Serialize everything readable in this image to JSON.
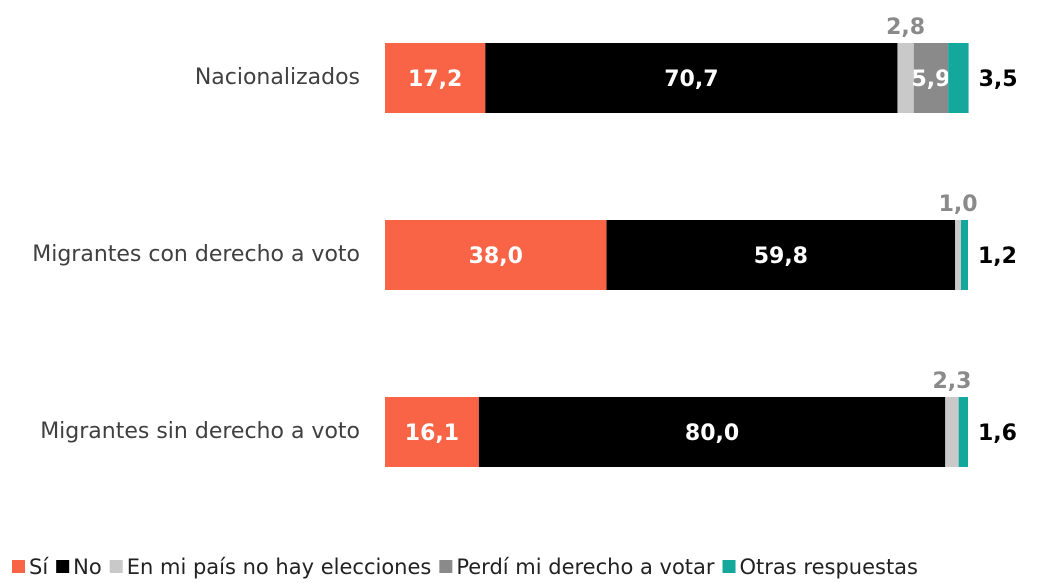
{
  "chart_data": {
    "type": "stacked-bar-horizontal",
    "categories": [
      "Nacionalizados",
      "Migrantes con derecho a voto",
      "Migrantes sin derecho a voto"
    ],
    "xlim": [
      0,
      100
    ],
    "legend": "bottom",
    "series": [
      {
        "name": "Sí",
        "color": "#fa6446",
        "values": [
          17.2,
          38.0,
          16.1
        ],
        "value_labels": [
          "17,2",
          "38,0",
          "16,1"
        ]
      },
      {
        "name": "No",
        "color": "#000000",
        "values": [
          70.7,
          59.8,
          80.0
        ],
        "value_labels": [
          "70,7",
          "59,8",
          "80,0"
        ]
      },
      {
        "name": "En mi país no hay elecciones",
        "color": "#c9c9c9",
        "values": [
          2.8,
          1.0,
          2.3
        ],
        "value_labels": [
          "2,8",
          "1,0",
          "2,3"
        ]
      },
      {
        "name": "Perdí mi derecho a votar",
        "color": "#8a8a8a",
        "values": [
          5.9,
          null,
          null
        ],
        "value_labels": [
          "5,9",
          null,
          null
        ]
      },
      {
        "name": "Otras respuestas",
        "color": "#14a89c",
        "values": [
          3.5,
          1.2,
          1.6
        ],
        "value_labels": [
          "3,5",
          "1,2",
          "1,6"
        ]
      }
    ]
  }
}
